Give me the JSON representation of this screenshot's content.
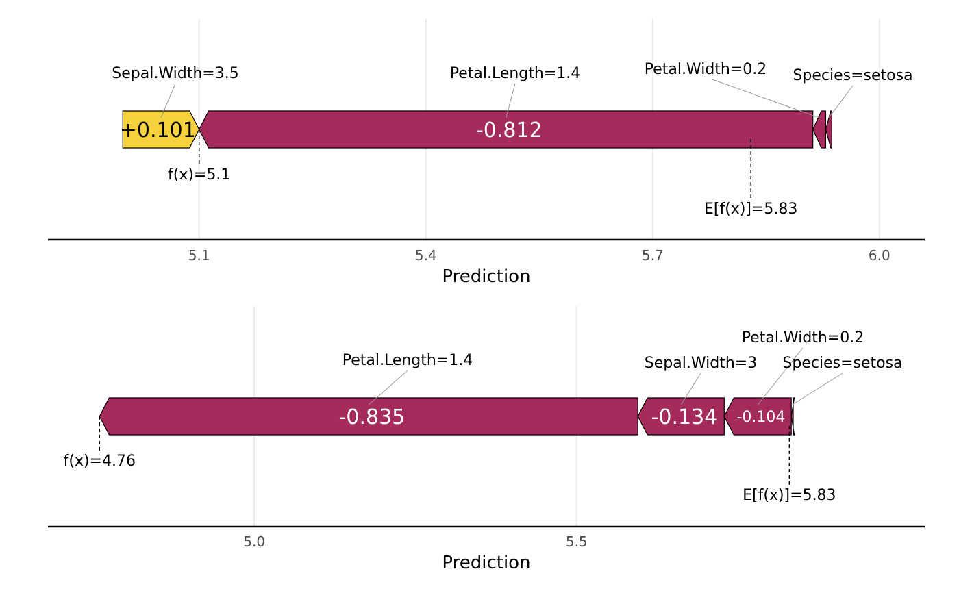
{
  "colors": {
    "negative": "#a52b5c",
    "positive": "#f5d13d",
    "grid": "#ebebeb",
    "axis": "#000000"
  },
  "chart_data": [
    {
      "type": "shap-waterfall-force",
      "xlabel": "Prediction",
      "xlim": [
        4.9,
        6.06
      ],
      "ticks": [
        5.1,
        5.4,
        5.7,
        6.0
      ],
      "tick_labels": [
        "5.1",
        "5.4",
        "5.7",
        "6.0"
      ],
      "baseline": 5.83,
      "baseline_label": "E[f(x)]=5.83",
      "prediction": 5.1,
      "prediction_label": "f(x)=5.1",
      "contributions": [
        {
          "feature": "Sepal.Width=3.5",
          "value": 0.101,
          "label": "+0.101"
        },
        {
          "feature": "Petal.Length=1.4",
          "value": -0.812,
          "label": "-0.812"
        },
        {
          "feature": "Petal.Width=0.2",
          "value": -0.017,
          "label": ""
        },
        {
          "feature": "Species=setosa",
          "value": -0.008,
          "label": ""
        }
      ]
    },
    {
      "type": "shap-waterfall-force",
      "xlabel": "Prediction",
      "xlim": [
        4.68,
        6.04
      ],
      "ticks": [
        5.0,
        5.5
      ],
      "tick_labels": [
        "5.0",
        "5.5"
      ],
      "baseline": 5.83,
      "baseline_label": "E[f(x)]=5.83",
      "prediction": 4.76,
      "prediction_label": "f(x)=4.76",
      "contributions": [
        {
          "feature": "Petal.Length=1.4",
          "value": -0.835,
          "label": "-0.835"
        },
        {
          "feature": "Sepal.Width=3",
          "value": -0.134,
          "label": "-0.134"
        },
        {
          "feature": "Petal.Width=0.2",
          "value": -0.104,
          "label": "-0.104"
        },
        {
          "feature": "Species=setosa",
          "value": -0.003,
          "label": ""
        }
      ]
    }
  ]
}
